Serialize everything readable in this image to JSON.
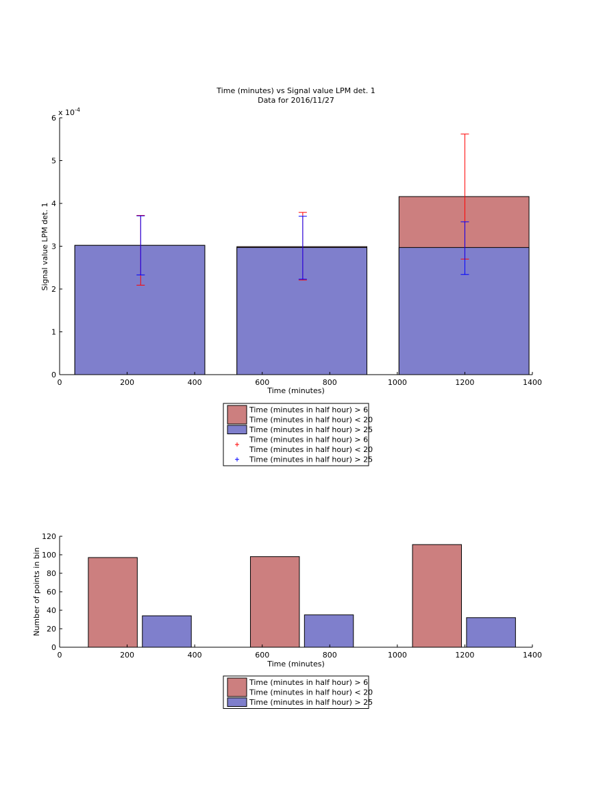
{
  "colors": {
    "red_fill": "#cc7f7f",
    "blue_fill": "#7f7fcc",
    "red_err": "#ff0000",
    "blue_err": "#0000ff",
    "axis": "#000000"
  },
  "chart_data": [
    {
      "type": "bar",
      "title": "Time (minutes) vs Signal value LPM det. 1",
      "subtitle": "Data for 2016/11/27",
      "xlabel": "Time (minutes)",
      "ylabel": "Signal value LPM det. 1",
      "y_exponent_label": "x 10",
      "y_exponent_power": "-4",
      "xlim": [
        0,
        1400
      ],
      "ylim": [
        0,
        6
      ],
      "y_scale_note": "values in units of 1e-4",
      "xticks": [
        "0",
        "200",
        "400",
        "600",
        "800",
        "1000",
        "1200",
        "1400"
      ],
      "yticks": [
        "0",
        "1",
        "2",
        "3",
        "4",
        "5",
        "6"
      ],
      "grid": false,
      "bar_style": "overlaid",
      "x": [
        240,
        720,
        1200
      ],
      "bar_range": [
        [
          45,
          430
        ],
        [
          525,
          910
        ],
        [
          1005,
          1390
        ]
      ],
      "series": [
        {
          "name": "Time (minutes in half hour) > 6\nTime (minutes in half hour) < 20",
          "values": [
            3.02,
            2.99,
            4.16
          ],
          "err_low": [
            2.09,
            2.21,
            2.7
          ],
          "err_high": [
            3.72,
            3.79,
            5.62
          ]
        },
        {
          "name": "Time (minutes in half hour) > 25",
          "values": [
            3.02,
            2.97,
            2.97
          ],
          "err_low": [
            2.33,
            2.23,
            2.34
          ],
          "err_high": [
            3.71,
            3.7,
            3.57
          ]
        }
      ],
      "legend": {
        "placement": "below",
        "entries": [
          {
            "kind": "patch",
            "color": "#cc7f7f",
            "lines": [
              "Time (minutes in half hour) > 6",
              "Time (minutes in half hour) < 20"
            ]
          },
          {
            "kind": "patch",
            "color": "#7f7fcc",
            "lines": [
              "Time (minutes in half hour) > 25"
            ]
          },
          {
            "kind": "marker",
            "color": "#ff0000",
            "lines": [
              "Time (minutes in half hour) > 6",
              "Time (minutes in half hour) < 20"
            ]
          },
          {
            "kind": "marker",
            "color": "#0000ff",
            "lines": [
              "Time (minutes in half hour) > 25"
            ]
          }
        ]
      }
    },
    {
      "type": "bar",
      "title": "",
      "xlabel": "Time (minutes)",
      "ylabel": "Number of points in bin",
      "xlim": [
        0,
        1400
      ],
      "ylim": [
        0,
        120
      ],
      "xticks": [
        "0",
        "200",
        "400",
        "600",
        "800",
        "1000",
        "1200",
        "1400"
      ],
      "yticks": [
        "0",
        "20",
        "40",
        "60",
        "80",
        "100",
        "120"
      ],
      "grid": false,
      "bar_style": "grouped",
      "series": [
        {
          "name": "Time (minutes in half hour) > 6\nTime (minutes in half hour) < 20",
          "x_range": [
            [
              85,
              230
            ],
            [
              565,
              710
            ],
            [
              1045,
              1190
            ]
          ],
          "values": [
            97,
            98,
            111
          ]
        },
        {
          "name": "Time (minutes in half hour) > 25",
          "x_range": [
            [
              245,
              390
            ],
            [
              725,
              870
            ],
            [
              1205,
              1350
            ]
          ],
          "values": [
            34,
            35,
            32
          ]
        }
      ],
      "legend": {
        "placement": "below",
        "entries": [
          {
            "kind": "patch",
            "color": "#cc7f7f",
            "lines": [
              "Time (minutes in half hour) > 6",
              "Time (minutes in half hour) < 20"
            ]
          },
          {
            "kind": "patch",
            "color": "#7f7fcc",
            "lines": [
              "Time (minutes in half hour) > 25"
            ]
          }
        ]
      }
    }
  ]
}
